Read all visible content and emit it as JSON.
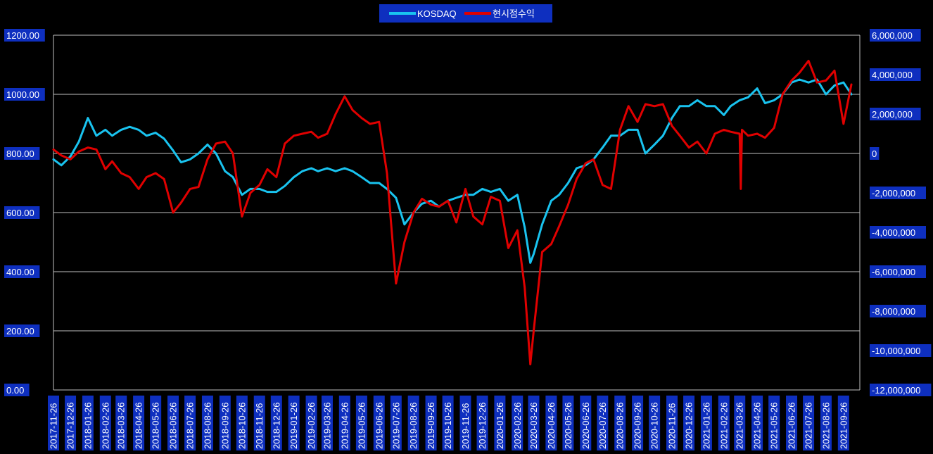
{
  "colors": {
    "background": "#000000",
    "label_box": "#0e2fbf",
    "grid": "#bfbfbf",
    "kosdaq": "#19c3ef",
    "strategy": "#e00000"
  },
  "chart_data": {
    "type": "line",
    "legend": {
      "placement": "top-center",
      "entries": [
        "KOSDAQ",
        "현시점수익"
      ]
    },
    "grid": true,
    "left_axis": {
      "min": 0,
      "max": 1200,
      "ticks": [
        "0.00",
        "200.00",
        "400.00",
        "600.00",
        "800.00",
        "1000.00",
        "1200.00"
      ]
    },
    "right_axis": {
      "min": -12000000,
      "max": 6000000,
      "ticks": [
        "-12,000,000",
        "-10,000,000",
        "-8,000,000",
        "-6,000,000",
        "-4,000,000",
        "-2,000,000",
        "0",
        "2,000,000",
        "4,000,000",
        "6,000,000"
      ]
    },
    "x_ticks": [
      "2017-11-26",
      "2017-12-26",
      "2018-01-26",
      "2018-02-26",
      "2018-03-26",
      "2018-04-26",
      "2018-05-26",
      "2018-06-26",
      "2018-07-26",
      "2018-08-26",
      "2018-09-26",
      "2018-10-26",
      "2018-11-26",
      "2018-12-26",
      "2019-01-26",
      "2019-02-26",
      "2019-03-26",
      "2019-04-26",
      "2019-05-26",
      "2019-06-26",
      "2019-07-26",
      "2019-08-26",
      "2019-09-26",
      "2019-10-26",
      "2019-11-26",
      "2019-12-26",
      "2020-01-26",
      "2020-02-26",
      "2020-03-26",
      "2020-04-26",
      "2020-05-26",
      "2020-06-26",
      "2020-07-26",
      "2020-08-26",
      "2020-09-26",
      "2020-10-26",
      "2020-11-26",
      "2020-12-26",
      "2021-01-26",
      "2021-02-26",
      "2021-03-26",
      "2021-04-26",
      "2021-05-26",
      "2021-06-26",
      "2021-07-26",
      "2021-08-26",
      "2021-09-26"
    ],
    "series": [
      {
        "name": "KOSDAQ",
        "axis": "left",
        "color": "#19c3ef",
        "x": [
          "2017-11-26",
          "2017-12-10",
          "2017-12-26",
          "2018-01-10",
          "2018-01-26",
          "2018-02-10",
          "2018-02-26",
          "2018-03-10",
          "2018-03-26",
          "2018-04-10",
          "2018-04-26",
          "2018-05-10",
          "2018-05-26",
          "2018-06-10",
          "2018-06-26",
          "2018-07-10",
          "2018-07-26",
          "2018-08-10",
          "2018-08-26",
          "2018-09-10",
          "2018-09-26",
          "2018-10-10",
          "2018-10-26",
          "2018-11-10",
          "2018-11-26",
          "2018-12-10",
          "2018-12-26",
          "2019-01-10",
          "2019-01-26",
          "2019-02-10",
          "2019-02-26",
          "2019-03-10",
          "2019-03-26",
          "2019-04-10",
          "2019-04-26",
          "2019-05-10",
          "2019-05-26",
          "2019-06-10",
          "2019-06-26",
          "2019-07-10",
          "2019-07-26",
          "2019-08-10",
          "2019-08-26",
          "2019-09-10",
          "2019-09-26",
          "2019-10-10",
          "2019-10-26",
          "2019-11-10",
          "2019-11-26",
          "2019-12-10",
          "2019-12-26",
          "2020-01-10",
          "2020-01-26",
          "2020-02-10",
          "2020-02-26",
          "2020-03-10",
          "2020-03-20",
          "2020-03-26",
          "2020-04-10",
          "2020-04-26",
          "2020-05-10",
          "2020-05-26",
          "2020-06-10",
          "2020-06-26",
          "2020-07-10",
          "2020-07-26",
          "2020-08-10",
          "2020-08-26",
          "2020-09-10",
          "2020-09-26",
          "2020-10-10",
          "2020-10-26",
          "2020-11-10",
          "2020-11-26",
          "2020-12-10",
          "2020-12-26",
          "2021-01-10",
          "2021-01-26",
          "2021-02-10",
          "2021-02-26",
          "2021-03-10",
          "2021-03-26",
          "2021-04-10",
          "2021-04-26",
          "2021-05-10",
          "2021-05-26",
          "2021-06-10",
          "2021-06-26",
          "2021-07-10",
          "2021-07-26",
          "2021-08-10",
          "2021-08-26",
          "2021-09-10",
          "2021-09-26",
          "2021-10-10"
        ],
        "values": [
          780,
          760,
          790,
          840,
          920,
          860,
          880,
          860,
          880,
          890,
          880,
          860,
          870,
          850,
          810,
          770,
          780,
          800,
          830,
          800,
          740,
          720,
          660,
          680,
          680,
          670,
          670,
          690,
          720,
          740,
          750,
          740,
          750,
          740,
          750,
          740,
          720,
          700,
          700,
          680,
          650,
          560,
          600,
          630,
          640,
          620,
          640,
          650,
          660,
          660,
          680,
          670,
          680,
          640,
          660,
          550,
          430,
          460,
          560,
          640,
          660,
          700,
          750,
          760,
          780,
          820,
          860,
          860,
          880,
          880,
          800,
          830,
          860,
          920,
          960,
          960,
          980,
          960,
          960,
          930,
          960,
          980,
          990,
          1020,
          970,
          980,
          1000,
          1040,
          1050,
          1040,
          1050,
          1000,
          1030,
          1040,
          1000
        ]
      },
      {
        "name": "현시점수익",
        "axis": "right",
        "color": "#e00000",
        "x": [
          "2017-11-26",
          "2017-12-10",
          "2017-12-26",
          "2018-01-10",
          "2018-01-26",
          "2018-02-10",
          "2018-02-26",
          "2018-03-10",
          "2018-03-26",
          "2018-04-10",
          "2018-04-26",
          "2018-05-10",
          "2018-05-26",
          "2018-06-10",
          "2018-06-26",
          "2018-07-10",
          "2018-07-26",
          "2018-08-10",
          "2018-08-26",
          "2018-09-10",
          "2018-09-26",
          "2018-10-10",
          "2018-10-26",
          "2018-11-10",
          "2018-11-26",
          "2018-12-10",
          "2018-12-26",
          "2019-01-10",
          "2019-01-26",
          "2019-02-10",
          "2019-02-26",
          "2019-03-10",
          "2019-03-26",
          "2019-04-10",
          "2019-04-26",
          "2019-05-10",
          "2019-05-26",
          "2019-06-10",
          "2019-06-26",
          "2019-07-10",
          "2019-07-26",
          "2019-08-10",
          "2019-08-26",
          "2019-09-10",
          "2019-09-26",
          "2019-10-10",
          "2019-10-26",
          "2019-11-10",
          "2019-11-26",
          "2019-12-10",
          "2019-12-26",
          "2020-01-10",
          "2020-01-26",
          "2020-02-10",
          "2020-02-26",
          "2020-03-10",
          "2020-03-20",
          "2020-03-26",
          "2020-04-10",
          "2020-04-26",
          "2020-05-10",
          "2020-05-26",
          "2020-06-10",
          "2020-06-26",
          "2020-07-10",
          "2020-07-26",
          "2020-08-10",
          "2020-08-26",
          "2020-09-10",
          "2020-09-26",
          "2020-10-10",
          "2020-10-26",
          "2020-11-10",
          "2020-11-26",
          "2020-12-10",
          "2020-12-26",
          "2021-01-10",
          "2021-01-26",
          "2021-02-10",
          "2021-02-26",
          "2021-03-10",
          "2021-03-26",
          "2021-03-28",
          "2021-03-30",
          "2021-04-10",
          "2021-04-26",
          "2021-05-10",
          "2021-05-26",
          "2021-06-10",
          "2021-06-26",
          "2021-07-10",
          "2021-07-26",
          "2021-08-10",
          "2021-08-26",
          "2021-09-10",
          "2021-09-26",
          "2021-10-10"
        ],
        "values": [
          200000,
          -100000,
          -300000,
          100000,
          300000,
          200000,
          -800000,
          -400000,
          -1000000,
          -1200000,
          -1800000,
          -1200000,
          -1000000,
          -1300000,
          -3000000,
          -2500000,
          -1800000,
          -1700000,
          -300000,
          500000,
          600000,
          0,
          -3200000,
          -2000000,
          -1600000,
          -800000,
          -1200000,
          500000,
          900000,
          1000000,
          1100000,
          800000,
          1000000,
          2000000,
          2900000,
          2200000,
          1800000,
          1500000,
          1600000,
          -1000000,
          -6600000,
          -4500000,
          -3000000,
          -2300000,
          -2600000,
          -2700000,
          -2400000,
          -3500000,
          -1800000,
          -3200000,
          -3600000,
          -2200000,
          -2400000,
          -4800000,
          -3900000,
          -6800000,
          -10700000,
          -9000000,
          -5000000,
          -4600000,
          -3700000,
          -2600000,
          -1300000,
          -500000,
          -300000,
          -1600000,
          -1800000,
          1200000,
          2400000,
          1600000,
          2500000,
          2400000,
          2500000,
          1400000,
          900000,
          300000,
          600000,
          0,
          1000000,
          1200000,
          1100000,
          1000000,
          -1800000,
          1200000,
          900000,
          1000000,
          800000,
          1300000,
          3000000,
          3700000,
          4100000,
          4700000,
          3600000,
          3700000,
          4200000,
          1500000,
          3500000
        ]
      }
    ]
  }
}
